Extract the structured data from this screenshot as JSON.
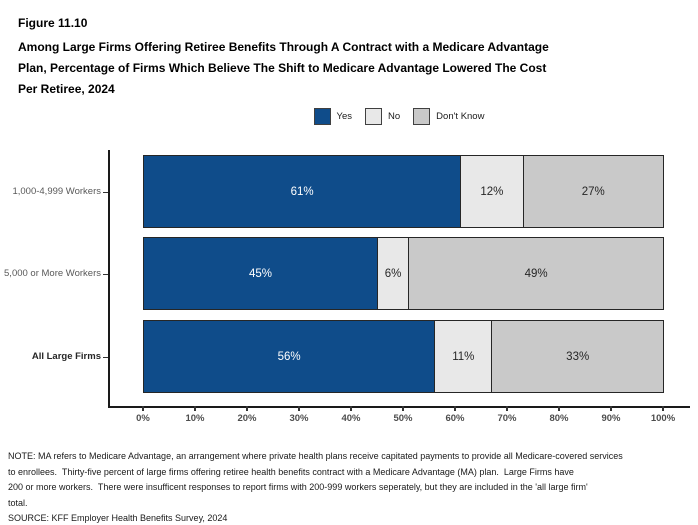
{
  "header": {
    "figure_label": "Figure 11.10",
    "title_lines": [
      "Among Large Firms Offering Retiree Benefits Through A Contract with a Medicare Advantage",
      "Plan, Percentage of Firms Which Believe The Shift to Medicare Advantage Lowered The Cost",
      "Per Retiree, 2024"
    ]
  },
  "chart_data": {
    "type": "bar",
    "variant": "horizontal-stacked",
    "categories": [
      {
        "label": "1,000-4,999 Workers",
        "bold": false
      },
      {
        "label": "5,000 or More Workers",
        "bold": false
      },
      {
        "label": "All Large Firms",
        "bold": true
      }
    ],
    "series": [
      {
        "name": "Yes",
        "color": "#0F4C8A",
        "label_color": "#FFFFFF",
        "values": [
          61,
          45,
          56
        ]
      },
      {
        "name": "No",
        "color": "#E8E8E8",
        "label_color": "#262626",
        "values": [
          12,
          6,
          11
        ]
      },
      {
        "name": "Don't Know",
        "color": "#C9C9C9",
        "label_color": "#262626",
        "values": [
          27,
          49,
          33
        ]
      }
    ],
    "value_suffix": "%",
    "xlim": [
      0,
      100
    ],
    "x_tick_labels": [
      "0%",
      "10%",
      "20%",
      "30%",
      "40%",
      "50%",
      "60%",
      "70%",
      "80%",
      "90%",
      "100%"
    ],
    "legend_position": "top-center",
    "grid": "off",
    "bar_labels": "inside-center"
  },
  "notes": {
    "lines": [
      "NOTE: MA refers to Medicare Advantage, an arrangement where private health plans receive capitated payments to provide all Medicare-covered services",
      "to enrollees.  Thirty-five percent of large firms offering retiree health benefits contract with a Medicare Advantage (MA) plan.  Large Firms have",
      "200 or more workers.  There were insufficent responses to report firms with 200-999 workers seperately, but they are included in the 'all large firm'",
      "total.",
      "SOURCE: KFF Employer Health Benefits Survey, 2024"
    ]
  }
}
